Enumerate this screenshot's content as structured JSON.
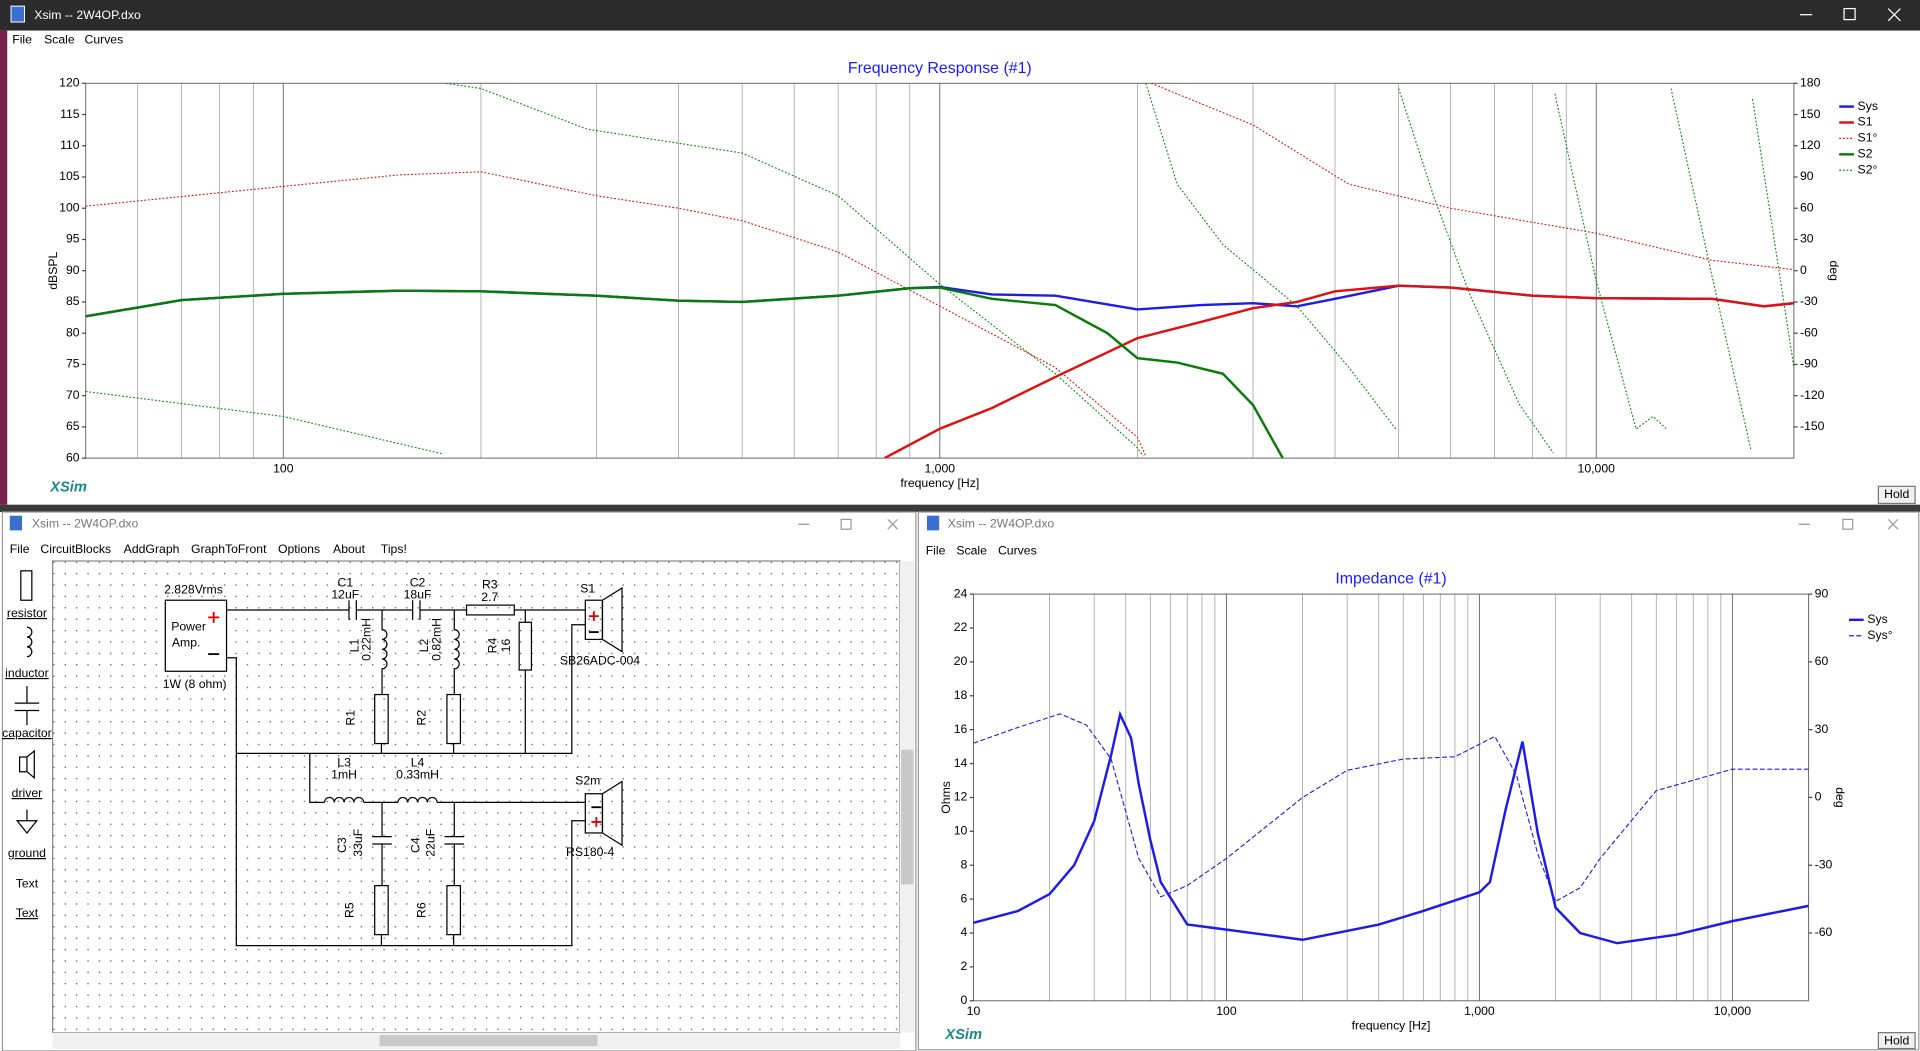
{
  "main_window": {
    "title": "Xsim -- 2W4OP.dxo",
    "menu": [
      "File",
      "Scale",
      "Curves"
    ],
    "brand": "XSim",
    "hold": "Hold"
  },
  "circuit_window": {
    "title": "Xsim -- 2W4OP.dxo",
    "menu": [
      "File",
      "CircuitBlocks",
      "AddGraph",
      "GraphToFront",
      "Options",
      "About",
      "Tips!"
    ],
    "toolbox": [
      "resistor",
      "inductor",
      "capacitor",
      "driver",
      "ground",
      "Text",
      "Text"
    ],
    "amp": {
      "voltage": "2.828Vrms",
      "label_1": "Power",
      "label_2": "Amp.",
      "rating": "1W (8 ohm)"
    },
    "parts": [
      {
        "name": "C1",
        "value": "12uF"
      },
      {
        "name": "C2",
        "value": "18uF"
      },
      {
        "name": "R3",
        "value": "2.7"
      },
      {
        "name": "L1",
        "value": "0.22mH"
      },
      {
        "name": "L2",
        "value": "0.82mH"
      },
      {
        "name": "R4",
        "value": "16"
      },
      {
        "name": "R1"
      },
      {
        "name": "R2"
      },
      {
        "name": "L3",
        "value": "1mH"
      },
      {
        "name": "L4",
        "value": "0.33mH"
      },
      {
        "name": "C3",
        "value": "33uF"
      },
      {
        "name": "C4",
        "value": "22uF"
      },
      {
        "name": "R5"
      },
      {
        "name": "R6"
      }
    ],
    "drivers": [
      {
        "name": "S1",
        "model": "SB26ADC-004"
      },
      {
        "name": "S2m",
        "model": "RS180-4"
      }
    ]
  },
  "impedance_window": {
    "title": "Xsim -- 2W4OP.dxo",
    "menu": [
      "File",
      "Scale",
      "Curves"
    ],
    "brand": "XSim",
    "hold": "Hold"
  },
  "chart_data": [
    {
      "type": "line",
      "title": "Frequency Response (#1)",
      "x_label": "frequency [Hz]",
      "y_label": "dBSPL",
      "y2_label": "deg",
      "log_x": true,
      "grid": "x",
      "legend": "right",
      "xlim": [
        50,
        20000
      ],
      "ylim": [
        60,
        120
      ],
      "y2lim": [
        -180,
        180
      ],
      "xticks": [
        100,
        {
          "value": 1000,
          "label": "1,000"
        },
        {
          "value": 10000,
          "label": "10,000"
        }
      ],
      "yticks": [
        60,
        65,
        70,
        75,
        80,
        85,
        90,
        95,
        100,
        105,
        110,
        115,
        120
      ],
      "y2ticks": [
        -150,
        -120,
        -90,
        -60,
        -30,
        0,
        30,
        60,
        90,
        120,
        150,
        180
      ],
      "series": [
        {
          "name": "Sys",
          "color": "#1c1ce6",
          "style": "solid",
          "x": [
            50,
            70,
            100,
            150,
            200,
            300,
            400,
            500,
            700,
            900,
            1000,
            1200,
            1500,
            2000,
            2500,
            3000,
            3500,
            4000,
            5000,
            6000,
            8000,
            10000,
            15000,
            18000,
            20000
          ],
          "values": [
            82.7,
            85.3,
            86.3,
            86.8,
            86.7,
            86,
            85.2,
            85,
            86,
            87.2,
            87.4,
            86.2,
            86,
            83.8,
            84.5,
            84.8,
            84.3,
            85.5,
            87.6,
            87.3,
            86,
            85.6,
            85.5,
            84.3,
            84.8
          ]
        },
        {
          "name": "S1",
          "color": "#e01010",
          "style": "solid",
          "x": [
            824,
            1000,
            1200,
            1500,
            2000,
            2500,
            3000,
            3500,
            4000,
            5000,
            6000,
            8000,
            10000,
            15000,
            18000,
            20000
          ],
          "values": [
            60,
            64.7,
            68,
            73,
            79.2,
            81.8,
            84,
            85,
            86.7,
            87.6,
            87.3,
            86,
            85.6,
            85.5,
            84.3,
            84.8
          ]
        },
        {
          "name": "S1°",
          "color": "#e01010",
          "style": "dotted",
          "axis": "y2",
          "x": [
            50,
            100,
            150,
            200,
            300,
            400,
            500,
            700,
            1000,
            1500,
            2000,
            2060,
            2080,
            2100,
            3000,
            4200,
            6000,
            10000,
            15000,
            20000
          ],
          "values": [
            62,
            81,
            92,
            95,
            72,
            60,
            48,
            18,
            -34,
            -93,
            -160,
            -178,
            null,
            180,
            140,
            83,
            60,
            36,
            10,
            1
          ]
        },
        {
          "name": "S2",
          "color": "#0a7a0a",
          "style": "solid",
          "x": [
            50,
            70,
            100,
            150,
            200,
            300,
            400,
            500,
            700,
            900,
            1000,
            1200,
            1500,
            1800,
            2000,
            2300,
            2700,
            3000,
            3330
          ],
          "values": [
            82.7,
            85.3,
            86.3,
            86.8,
            86.7,
            86,
            85.2,
            85,
            86,
            87.2,
            87.3,
            85.5,
            84.5,
            80,
            76,
            75.3,
            73.5,
            68.5,
            60
          ]
        },
        {
          "name": "S2°",
          "color": "#0a8a0a",
          "style": "dotted",
          "axis": "y2",
          "x": [
            50,
            100,
            175,
            176,
            177,
            200,
            290,
            500,
            700,
            1000,
            1500,
            2000,
            2040,
            2050,
            2060,
            2300,
            2700,
            3500,
            4200,
            4950,
            4980,
            5000,
            5650,
            6410,
            7630,
            8600,
            8620,
            8650,
            10000,
            11500,
            12200,
            12800,
            12900,
            13000,
            14860,
            17200,
            17250,
            17300,
            20000
          ],
          "values": [
            -116,
            -140,
            -176,
            null,
            180,
            175,
            136,
            113,
            72,
            -13,
            -99,
            -170,
            -178,
            null,
            180,
            83,
            25,
            -34,
            -93,
            -152,
            null,
            175,
            72,
            -22,
            -128,
            -175,
            null,
            170,
            -10,
            -152,
            -140,
            -152,
            null,
            175,
            7,
            -172,
            null,
            165,
            -93
          ]
        }
      ]
    },
    {
      "type": "line",
      "title": "Impedance (#1)",
      "x_label": "frequency [Hz]",
      "y_label": "Ohms",
      "y2_label": "deg",
      "log_x": true,
      "grid": "x",
      "legend": "right",
      "xlim": [
        10,
        20000
      ],
      "ylim": [
        0,
        24
      ],
      "y2lim": [
        -90,
        90
      ],
      "xticks": [
        10,
        100,
        {
          "value": 1000,
          "label": "1,000"
        },
        {
          "value": 10000,
          "label": "10,000"
        }
      ],
      "yticks": [
        0,
        2,
        4,
        6,
        8,
        10,
        12,
        14,
        16,
        18,
        20,
        22,
        24
      ],
      "y2ticks": [
        -60,
        -30,
        0,
        30,
        60,
        90
      ],
      "series": [
        {
          "name": "Sys",
          "color": "#1c1ce6",
          "style": "solid",
          "x": [
            10,
            15,
            20,
            25,
            30,
            35,
            38,
            42,
            45,
            50,
            55,
            70,
            100,
            200,
            400,
            600,
            1000,
            1100,
            1270,
            1480,
            1700,
            2000,
            2500,
            3500,
            6000,
            10000,
            20000
          ],
          "values": [
            4.6,
            5.3,
            6.3,
            8,
            10.6,
            14.5,
            16.9,
            15.5,
            12.8,
            9.5,
            7,
            4.5,
            4.2,
            3.6,
            4.5,
            5.3,
            6.4,
            7,
            11.3,
            15.3,
            9.9,
            5.5,
            4,
            3.4,
            3.9,
            4.7,
            5.6
          ]
        },
        {
          "name": "Sys°",
          "color": "#1c1ce6",
          "style": "dashed",
          "axis": "y2",
          "x": [
            10,
            15,
            22,
            28,
            35,
            45,
            55,
            70,
            100,
            200,
            300,
            500,
            800,
            1150,
            1400,
            1700,
            2000,
            2500,
            3000,
            5000,
            10000,
            20000
          ],
          "values": [
            24,
            31,
            37,
            32,
            17,
            -27,
            -44,
            -39,
            -27,
            0,
            12,
            17,
            18,
            27,
            10,
            -25,
            -46,
            -40,
            -27,
            3,
            12.5,
            12.5
          ]
        }
      ]
    }
  ]
}
